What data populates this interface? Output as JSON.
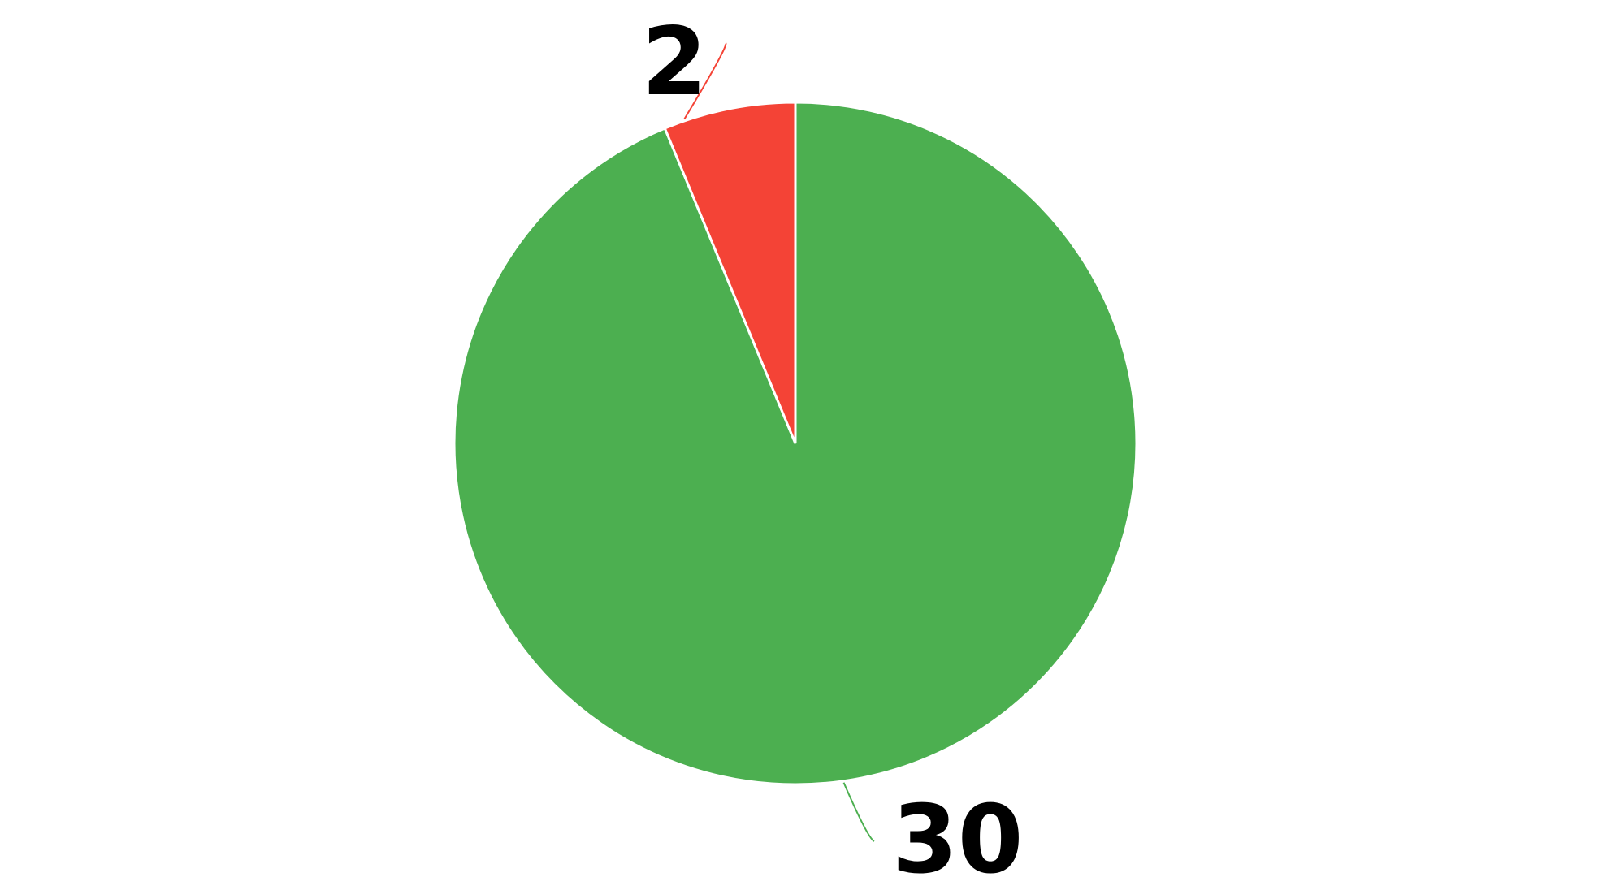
{
  "chart_data": {
    "type": "pie",
    "slices": [
      {
        "value": 30,
        "label": "30",
        "color": "#4caf50"
      },
      {
        "value": 2,
        "label": "2",
        "color": "#f44336"
      }
    ],
    "start_angle": "top",
    "direction": "clockwise",
    "legend": "none",
    "title": ""
  }
}
